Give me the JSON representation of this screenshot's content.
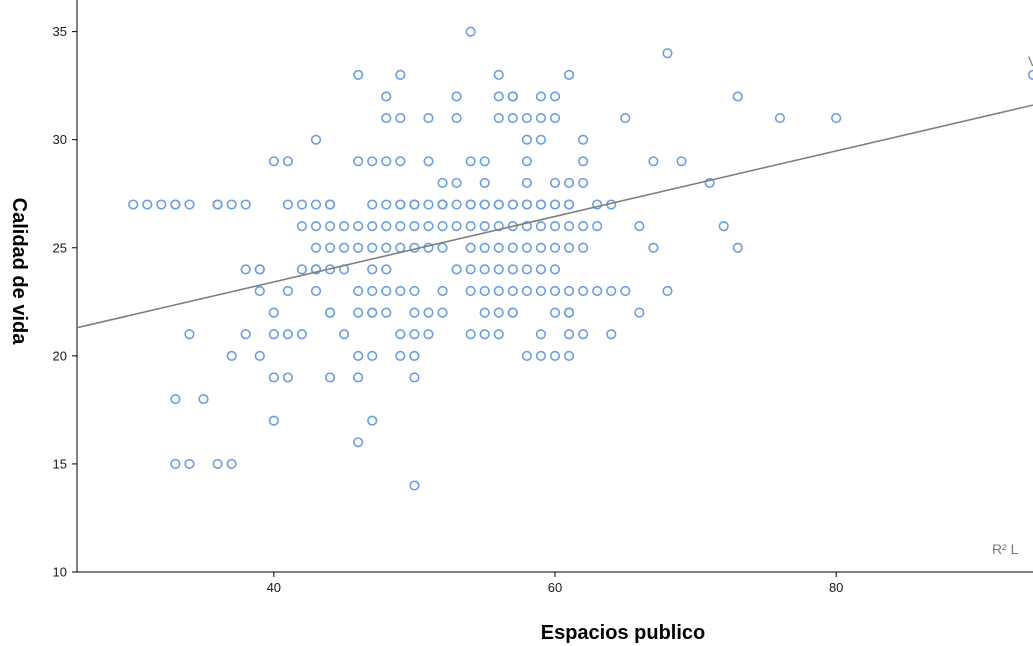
{
  "chart_data": {
    "type": "scatter",
    "xlabel": "Espacios publico",
    "ylabel": "Calidad de vida",
    "xlim": [
      26,
      94
    ],
    "ylim": [
      10,
      36
    ],
    "xticks": [
      40,
      60,
      80
    ],
    "yticks": [
      10,
      15,
      20,
      25,
      30,
      35
    ],
    "grid": false,
    "colors": {
      "marker": "#6a9fde",
      "fit_line": "#7f7f7f",
      "axis": "#000000"
    },
    "fit_line": {
      "x": [
        26,
        94
      ],
      "y": [
        21.3,
        31.6
      ]
    },
    "annotation": "R² L",
    "top_right_fragment": "V",
    "points": {
      "x": [
        54,
        68,
        46,
        49,
        56,
        61,
        48,
        53,
        56,
        57,
        57,
        59,
        60,
        73,
        48,
        49,
        51,
        53,
        56,
        57,
        58,
        59,
        60,
        65,
        76,
        80,
        43,
        58,
        59,
        62,
        40,
        41,
        46,
        47,
        48,
        49,
        51,
        54,
        55,
        58,
        62,
        67,
        69,
        52,
        53,
        55,
        58,
        60,
        61,
        62,
        71,
        31,
        32,
        33,
        34,
        37,
        38,
        41,
        42,
        44,
        48,
        49,
        50,
        51,
        52,
        53,
        54,
        55,
        56,
        57,
        58,
        59,
        60,
        61,
        36,
        43,
        47,
        49,
        50,
        52,
        54,
        55,
        56,
        57,
        59,
        61,
        42,
        43,
        44,
        45,
        46,
        47,
        48,
        49,
        50,
        51,
        52,
        53,
        54,
        55,
        56,
        57,
        58,
        59,
        60,
        61,
        62,
        63,
        66,
        72,
        43,
        44,
        45,
        46,
        47,
        48,
        49,
        50,
        51,
        52,
        54,
        55,
        56,
        57,
        58,
        59,
        60,
        61,
        62,
        67,
        73,
        38,
        39,
        43,
        44,
        45,
        48,
        54,
        55,
        56,
        57,
        58,
        59,
        60,
        39,
        41,
        43,
        46,
        47,
        48,
        49,
        50,
        52,
        54,
        55,
        56,
        57,
        58,
        59,
        60,
        61,
        62,
        63,
        64,
        65,
        68,
        40,
        44,
        46,
        47,
        48,
        50,
        51,
        52,
        55,
        56,
        57,
        60,
        61,
        34,
        38,
        40,
        41,
        42,
        45,
        49,
        50,
        51,
        54,
        55,
        56,
        59,
        61,
        62,
        64,
        37,
        39,
        46,
        47,
        49,
        50,
        58,
        59,
        60,
        61,
        40,
        41,
        44,
        46,
        50,
        33,
        35,
        40,
        47,
        46,
        33,
        34,
        36,
        37,
        50,
        94,
        30,
        33,
        36,
        44,
        50,
        52,
        58,
        60,
        63,
        64,
        39,
        42,
        43,
        47,
        53,
        44,
        47,
        57,
        61,
        66
      ],
      "y": [
        35,
        34,
        33,
        33,
        33,
        33,
        32,
        32,
        32,
        32,
        32,
        32,
        32,
        32,
        31,
        31,
        31,
        31,
        31,
        31,
        31,
        31,
        31,
        31,
        31,
        31,
        30,
        30,
        30,
        30,
        29,
        29,
        29,
        29,
        29,
        29,
        29,
        29,
        29,
        29,
        29,
        29,
        29,
        28,
        28,
        28,
        28,
        28,
        28,
        28,
        28,
        27,
        27,
        27,
        27,
        27,
        27,
        27,
        27,
        27,
        27,
        27,
        27,
        27,
        27,
        27,
        27,
        27,
        27,
        27,
        27,
        27,
        27,
        27,
        27,
        27,
        27,
        27,
        27,
        27,
        27,
        27,
        27,
        27,
        27,
        27,
        26,
        26,
        26,
        26,
        26,
        26,
        26,
        26,
        26,
        26,
        26,
        26,
        26,
        26,
        26,
        26,
        26,
        26,
        26,
        26,
        26,
        26,
        26,
        26,
        25,
        25,
        25,
        25,
        25,
        25,
        25,
        25,
        25,
        25,
        25,
        25,
        25,
        25,
        25,
        25,
        25,
        25,
        25,
        25,
        25,
        24,
        24,
        24,
        24,
        24,
        24,
        24,
        24,
        24,
        24,
        24,
        24,
        24,
        23,
        23,
        23,
        23,
        23,
        23,
        23,
        23,
        23,
        23,
        23,
        23,
        23,
        23,
        23,
        23,
        23,
        23,
        23,
        23,
        23,
        23,
        22,
        22,
        22,
        22,
        22,
        22,
        22,
        22,
        22,
        22,
        22,
        22,
        22,
        21,
        21,
        21,
        21,
        21,
        21,
        21,
        21,
        21,
        21,
        21,
        21,
        21,
        21,
        21,
        21,
        20,
        20,
        20,
        20,
        20,
        20,
        20,
        20,
        20,
        20,
        19,
        19,
        19,
        19,
        19,
        18,
        18,
        17,
        17,
        16,
        15,
        15,
        15,
        15,
        14,
        33,
        27,
        27,
        27,
        27,
        27,
        27,
        27,
        27,
        27,
        27,
        24,
        24,
        24,
        24,
        24,
        22,
        22,
        22,
        22,
        22
      ]
    }
  }
}
